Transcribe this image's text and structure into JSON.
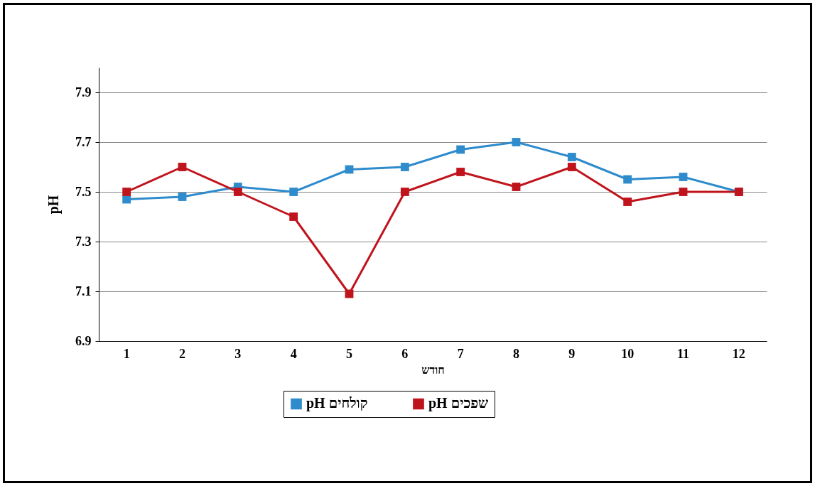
{
  "chart_data": {
    "type": "line",
    "xlabel": "חודש",
    "ylabel": "pH",
    "categories": [
      "1",
      "2",
      "3",
      "4",
      "5",
      "6",
      "7",
      "8",
      "9",
      "10",
      "11",
      "12"
    ],
    "series": [
      {
        "name": "pH קולחים",
        "color": "#2e8bcc",
        "values": [
          7.47,
          7.48,
          7.52,
          7.5,
          7.59,
          7.6,
          7.67,
          7.7,
          7.64,
          7.55,
          7.56,
          7.5
        ]
      },
      {
        "name": "pH שפכים",
        "color": "#c0141c",
        "values": [
          7.5,
          7.6,
          7.5,
          7.4,
          7.09,
          7.5,
          7.58,
          7.52,
          7.6,
          7.46,
          7.5,
          7.5
        ]
      }
    ],
    "ylim": [
      6.9,
      8.0
    ],
    "yticks": [
      6.9,
      7.1,
      7.3,
      7.5,
      7.7,
      7.9
    ],
    "grid": "y",
    "legend": "bottom",
    "marker": "square",
    "line_style": "solid"
  }
}
